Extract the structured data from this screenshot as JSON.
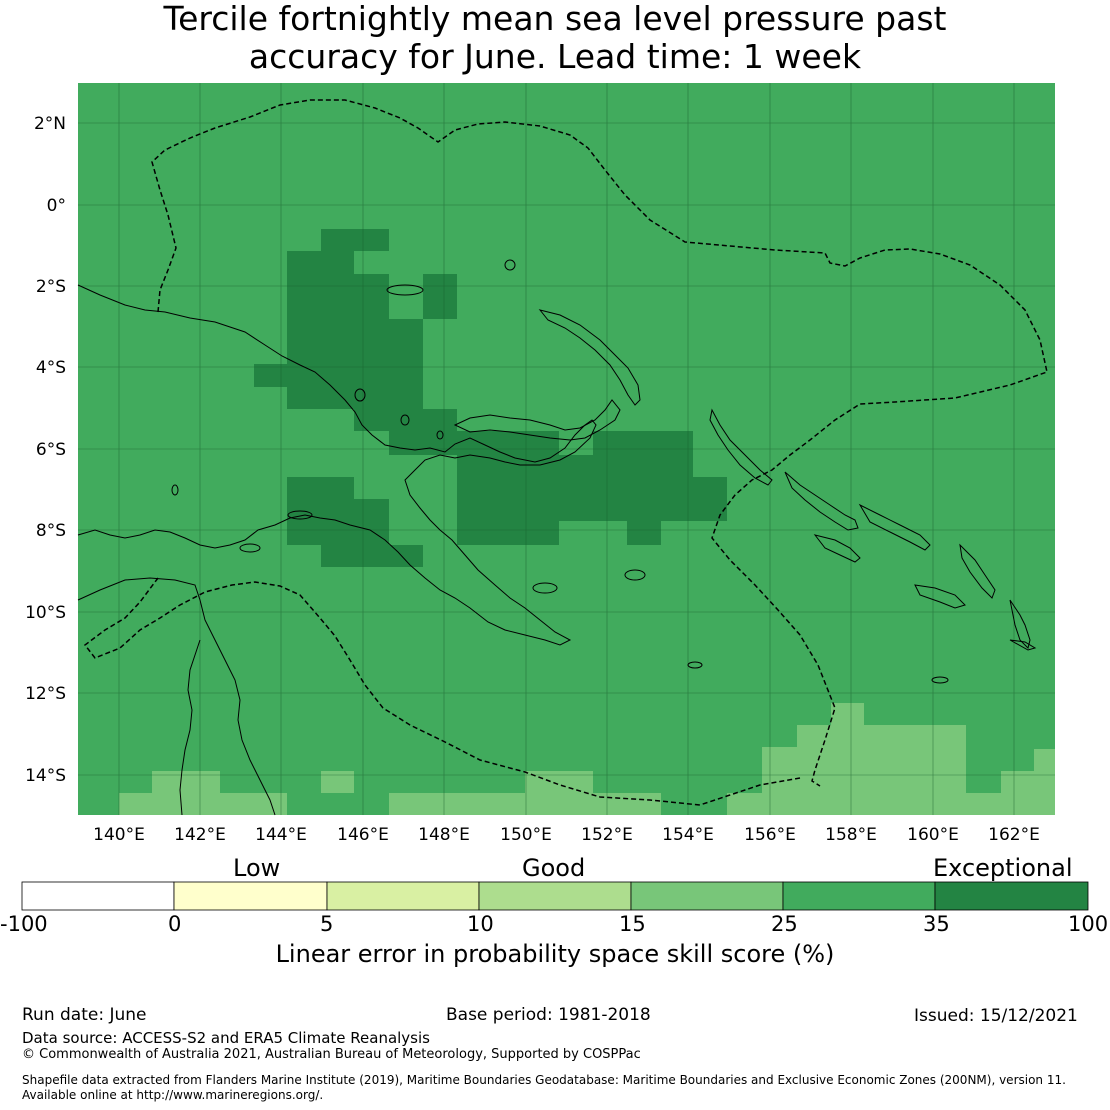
{
  "title": {
    "line1": "Tercile fortnightly mean sea level pressure past",
    "line2": "accuracy for June. Lead time: 1 week"
  },
  "map": {
    "lat_ticks": [
      "2°N",
      "0°",
      "2°S",
      "4°S",
      "6°S",
      "8°S",
      "10°S",
      "12°S",
      "14°S"
    ],
    "lon_ticks": [
      "140°E",
      "142°E",
      "144°E",
      "146°E",
      "148°E",
      "150°E",
      "152°E",
      "154°E",
      "156°E",
      "158°E",
      "160°E",
      "162°E"
    ],
    "background_color": "#41ab5d",
    "dark_color": "#238443",
    "light_color": "#78c679"
  },
  "colorbar": {
    "categories": [
      "Low",
      "Good",
      "Exceptional"
    ],
    "ticks": [
      "-100",
      "0",
      "5",
      "10",
      "15",
      "25",
      "35",
      "100"
    ],
    "colors": [
      "#ffffff",
      "#ffffcc",
      "#d9f0a3",
      "#addd8e",
      "#78c679",
      "#41ab5d",
      "#238443"
    ],
    "label": "Linear error in probability space skill score (%)"
  },
  "footer": {
    "run_date": "Run date: June",
    "base_period": "Base period: 1981-2018",
    "issued": "Issued: 15/12/2021",
    "data_source": "Data source: ACCESS-S2 and ERA5 Climate Reanalysis",
    "copyright": "© Commonwealth of Australia 2021, Australian Bureau of Meteorology, Supported by COSPPac",
    "shapefile_line1": "Shapefile data extracted from Flanders Marine Institute (2019), Maritime Boundaries Geodatabase: Maritime Boundaries and Exclusive Economic Zones (200NM), version 11.",
    "shapefile_line2": "Available online at http://www.marineregions.org/."
  }
}
